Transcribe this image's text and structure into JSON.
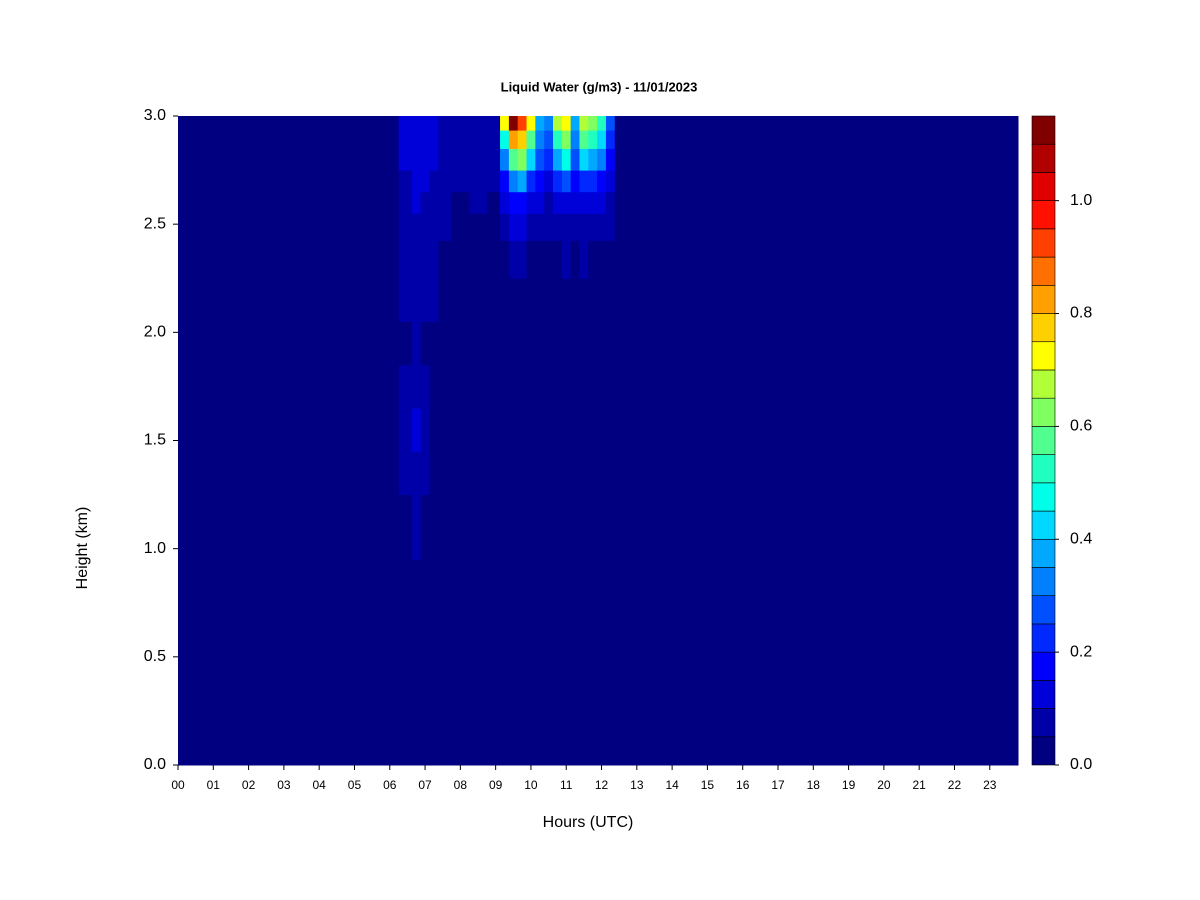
{
  "chart_data": {
    "type": "heatmap",
    "title": "Liquid Water (g/m3) - 11/01/2023",
    "xlabel": "Hours (UTC)",
    "ylabel": "Height (km)",
    "xlim": [
      0,
      23.8
    ],
    "ylim": [
      0,
      3
    ],
    "xticks": [
      {
        "value": 0,
        "label": "00"
      },
      {
        "value": 1,
        "label": "01"
      },
      {
        "value": 2,
        "label": "02"
      },
      {
        "value": 3,
        "label": "03"
      },
      {
        "value": 4,
        "label": "04"
      },
      {
        "value": 5,
        "label": "05"
      },
      {
        "value": 6,
        "label": "06"
      },
      {
        "value": 7,
        "label": "07"
      },
      {
        "value": 8,
        "label": "08"
      },
      {
        "value": 9,
        "label": "09"
      },
      {
        "value": 10,
        "label": "10"
      },
      {
        "value": 11,
        "label": "11"
      },
      {
        "value": 12,
        "label": "12"
      },
      {
        "value": 13,
        "label": "13"
      },
      {
        "value": 14,
        "label": "14"
      },
      {
        "value": 15,
        "label": "15"
      },
      {
        "value": 16,
        "label": "16"
      },
      {
        "value": 17,
        "label": "17"
      },
      {
        "value": 18,
        "label": "18"
      },
      {
        "value": 19,
        "label": "19"
      },
      {
        "value": 20,
        "label": "20"
      },
      {
        "value": 21,
        "label": "21"
      },
      {
        "value": 22,
        "label": "22"
      },
      {
        "value": 23,
        "label": "23"
      }
    ],
    "yticks": [
      {
        "value": 0,
        "label": "0.0"
      },
      {
        "value": 0.5,
        "label": "0.5"
      },
      {
        "value": 1,
        "label": "1.0"
      },
      {
        "value": 1.5,
        "label": "1.5"
      },
      {
        "value": 2,
        "label": "2.0"
      },
      {
        "value": 2.5,
        "label": "2.5"
      },
      {
        "value": 3,
        "label": "3.0"
      }
    ],
    "x": [
      0,
      3,
      6,
      6.5,
      6.75,
      7,
      7.25,
      7.5,
      8,
      8.5,
      9,
      9.25,
      9.5,
      9.75,
      10,
      10.25,
      10.5,
      10.75,
      11,
      11.25,
      11.5,
      11.75,
      12,
      12.25,
      12.5,
      13,
      18,
      23.8
    ],
    "y": [
      0.25,
      0.75,
      1.15,
      1.35,
      1.55,
      1.75,
      1.95,
      2.15,
      2.35,
      2.5,
      2.6,
      2.7,
      2.8,
      2.9,
      2.97
    ],
    "values": [
      [
        0,
        0,
        0,
        0,
        0,
        0,
        0,
        0,
        0,
        0,
        0,
        0,
        0,
        0,
        0,
        0,
        0,
        0,
        0,
        0,
        0,
        0,
        0,
        0,
        0,
        0,
        0,
        0
      ],
      [
        0,
        0,
        0,
        0,
        0,
        0,
        0,
        0,
        0,
        0,
        0,
        0,
        0,
        0,
        0,
        0,
        0,
        0,
        0,
        0,
        0,
        0,
        0,
        0,
        0,
        0,
        0,
        0
      ],
      [
        0,
        0,
        0,
        0,
        0.06,
        0,
        0,
        0,
        0,
        0,
        0,
        0,
        0,
        0,
        0,
        0,
        0,
        0,
        0,
        0,
        0,
        0,
        0,
        0,
        0,
        0,
        0,
        0
      ],
      [
        0,
        0,
        0,
        0.06,
        0.08,
        0.06,
        0,
        0,
        0,
        0,
        0,
        0,
        0,
        0,
        0,
        0,
        0,
        0,
        0,
        0,
        0,
        0,
        0,
        0,
        0,
        0,
        0,
        0
      ],
      [
        0,
        0,
        0,
        0.07,
        0.1,
        0.07,
        0,
        0,
        0,
        0,
        0,
        0,
        0,
        0,
        0,
        0,
        0,
        0,
        0,
        0,
        0,
        0,
        0,
        0,
        0,
        0,
        0,
        0
      ],
      [
        0,
        0,
        0,
        0.05,
        0.08,
        0.05,
        0,
        0,
        0,
        0,
        0,
        0,
        0,
        0,
        0,
        0,
        0,
        0,
        0,
        0,
        0,
        0,
        0,
        0,
        0,
        0,
        0,
        0
      ],
      [
        0,
        0,
        0,
        0,
        0.05,
        0,
        0,
        0,
        0,
        0,
        0,
        0,
        0,
        0,
        0,
        0,
        0,
        0,
        0,
        0,
        0,
        0,
        0,
        0,
        0,
        0,
        0,
        0
      ],
      [
        0,
        0,
        0,
        0.05,
        0.07,
        0.06,
        0.05,
        0,
        0,
        0,
        0,
        0,
        0,
        0,
        0,
        0,
        0,
        0,
        0,
        0,
        0,
        0,
        0,
        0,
        0,
        0,
        0,
        0
      ],
      [
        0,
        0,
        0,
        0.06,
        0.08,
        0.07,
        0.06,
        0,
        0,
        0,
        0,
        0,
        0.06,
        0.06,
        0,
        0,
        0,
        0,
        0.05,
        0,
        0.05,
        0,
        0,
        0,
        0,
        0,
        0,
        0
      ],
      [
        0,
        0,
        0,
        0.07,
        0.09,
        0.08,
        0.07,
        0.05,
        0,
        0,
        0,
        0.07,
        0.1,
        0.1,
        0.08,
        0.07,
        0.06,
        0.07,
        0.08,
        0.07,
        0.08,
        0.07,
        0.07,
        0.05,
        0,
        0,
        0,
        0
      ],
      [
        0,
        0,
        0,
        0.08,
        0.1,
        0.09,
        0.08,
        0.06,
        0,
        0.05,
        0,
        0.1,
        0.15,
        0.16,
        0.12,
        0.1,
        0.09,
        0.11,
        0.12,
        0.1,
        0.12,
        0.11,
        0.1,
        0.07,
        0,
        0,
        0,
        0
      ],
      [
        0,
        0,
        0,
        0.09,
        0.11,
        0.1,
        0.09,
        0.07,
        0.05,
        0.06,
        0.05,
        0.18,
        0.3,
        0.35,
        0.22,
        0.15,
        0.13,
        0.2,
        0.25,
        0.15,
        0.22,
        0.2,
        0.17,
        0.1,
        0,
        0,
        0,
        0
      ],
      [
        0,
        0,
        0,
        0.1,
        0.12,
        0.11,
        0.1,
        0.08,
        0.06,
        0.07,
        0.06,
        0.3,
        0.55,
        0.6,
        0.4,
        0.25,
        0.2,
        0.35,
        0.45,
        0.25,
        0.4,
        0.38,
        0.3,
        0.15,
        0,
        0,
        0,
        0
      ],
      [
        0,
        0,
        0,
        0.1,
        0.13,
        0.12,
        0.1,
        0.08,
        0.07,
        0.08,
        0.07,
        0.45,
        0.8,
        0.75,
        0.55,
        0.3,
        0.25,
        0.5,
        0.6,
        0.3,
        0.55,
        0.5,
        0.4,
        0.2,
        0,
        0,
        0,
        0
      ],
      [
        0,
        0,
        0,
        0.1,
        0.13,
        0.12,
        0.1,
        0.08,
        0.07,
        0.08,
        0.08,
        0.7,
        1.1,
        0.9,
        0.7,
        0.35,
        0.3,
        0.65,
        0.7,
        0.35,
        0.65,
        0.6,
        0.5,
        0.25,
        0,
        0,
        0,
        0
      ]
    ],
    "levels": [
      0,
      0.05,
      0.1,
      0.15,
      0.2,
      0.25,
      0.3,
      0.35,
      0.4,
      0.45,
      0.5,
      0.55,
      0.6,
      0.65,
      0.7,
      0.75,
      0.8,
      0.85,
      0.9,
      0.95,
      1,
      1.05,
      1.1,
      1.15
    ],
    "colors": [
      "#000080",
      "#0000a8",
      "#0000d8",
      "#0000ff",
      "#0028ff",
      "#0050ff",
      "#0080ff",
      "#00a8ff",
      "#00d8ff",
      "#00ffe8",
      "#20ffc0",
      "#50ff90",
      "#80ff60",
      "#b0ff38",
      "#ffff00",
      "#ffd000",
      "#ffa000",
      "#ff7000",
      "#ff4000",
      "#ff1000",
      "#e00000",
      "#b00000",
      "#800000"
    ],
    "colorbar_ticks": [
      {
        "value": 0,
        "label": "0.0"
      },
      {
        "value": 0.2,
        "label": "0.2"
      },
      {
        "value": 0.4,
        "label": "0.4"
      },
      {
        "value": 0.6,
        "label": "0.6"
      },
      {
        "value": 0.8,
        "label": "0.8"
      },
      {
        "value": 1,
        "label": "1.0"
      }
    ]
  }
}
